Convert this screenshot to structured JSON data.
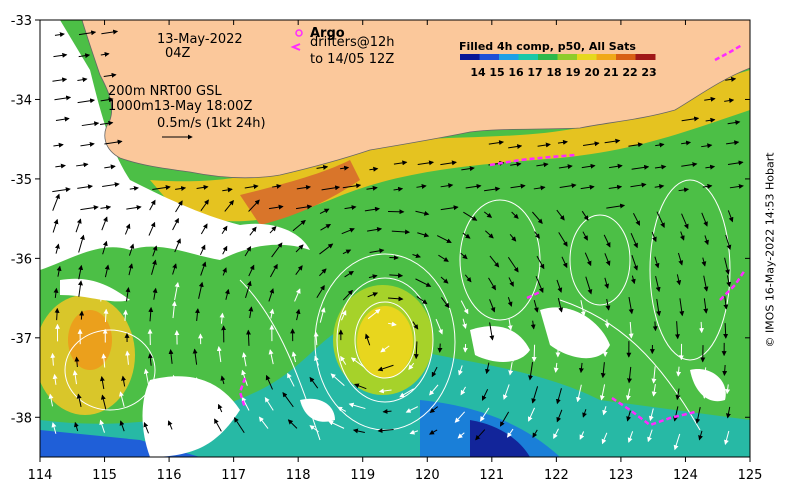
{
  "map": {
    "lon_range": [
      114,
      125
    ],
    "lat_range": [
      -38.5,
      -33
    ],
    "x_ticks": [
      "114",
      "115",
      "116",
      "117",
      "118",
      "119",
      "120",
      "121",
      "122",
      "123",
      "124",
      "125"
    ],
    "y_ticks": [
      "-33",
      "-34",
      "-35",
      "-36",
      "-37",
      "-38"
    ],
    "land_color": "#fbc89b",
    "missing_color": "#ffffff"
  },
  "annotations": {
    "date_line1": "13-May-2022",
    "date_line2": "04Z",
    "contours_line1": "200m  NRT00 GSL",
    "contours_line2": "1000m13-May 18:00Z",
    "vector_scale": "0.5m/s (1kt 24h)",
    "argo_label": "Argo",
    "drifters_line1": "drifters@12h",
    "drifters_line2": "to 14/05 12Z"
  },
  "legend": {
    "title": "Filled 4h comp, p50, All Sats",
    "ticks": [
      "14",
      "15",
      "16",
      "17",
      "18",
      "19",
      "20",
      "21",
      "22",
      "23"
    ],
    "colors": [
      "#0a1696",
      "#1f4fd6",
      "#1fa0e6",
      "#19c8a8",
      "#2cb84a",
      "#8fcc2a",
      "#e6d81e",
      "#f0a818",
      "#d85f14",
      "#a01818"
    ]
  },
  "credit": "© IMOS 16-May-2022 14:53 Hobart"
}
